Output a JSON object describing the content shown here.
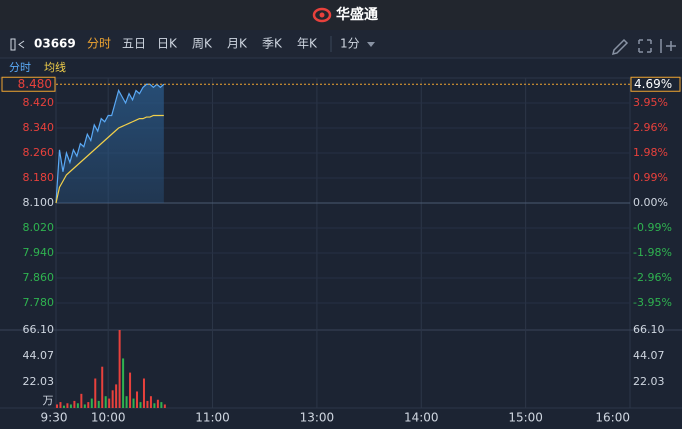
{
  "header": {
    "title": "华盛通"
  },
  "toolbar": {
    "code": "03669",
    "tabs": [
      "分时",
      "五日",
      "日K",
      "周K",
      "月K",
      "季K",
      "年K"
    ],
    "interval": "1分"
  },
  "chart_data": [
    {
      "type": "line",
      "x": [
        0,
        2,
        4,
        6,
        8,
        10,
        12,
        14,
        16,
        18,
        20,
        22,
        24,
        26,
        28,
        30,
        32,
        34,
        36,
        38,
        40,
        42,
        44,
        46,
        48,
        50,
        52,
        54,
        56,
        58,
        60,
        62
      ],
      "xlim": [
        0,
        330
      ],
      "xticks": [
        {
          "value": 0,
          "label": "9:30"
        },
        {
          "value": 30,
          "label": "10:00"
        },
        {
          "value": 90,
          "label": "11:00"
        },
        {
          "value": 150,
          "label": "13:00"
        },
        {
          "value": 210,
          "label": "14:00"
        },
        {
          "value": 270,
          "label": "15:00"
        },
        {
          "value": 330,
          "label": "16:00"
        }
      ],
      "ylim": [
        7.7,
        8.5
      ],
      "yticks": [
        {
          "value": 8.42,
          "label": "8.420"
        },
        {
          "value": 8.34,
          "label": "8.340"
        },
        {
          "value": 8.26,
          "label": "8.260"
        },
        {
          "value": 8.18,
          "label": "8.180"
        },
        {
          "value": 8.1,
          "label": "8.100"
        },
        {
          "value": 8.02,
          "label": "8.020"
        },
        {
          "value": 7.94,
          "label": "7.940"
        },
        {
          "value": 7.86,
          "label": "7.860"
        },
        {
          "value": 7.78,
          "label": "7.780"
        }
      ],
      "y2lim": [
        -4.94,
        4.94
      ],
      "y2ticks": [
        {
          "value": 3.95,
          "label": "3.95%"
        },
        {
          "value": 2.96,
          "label": "2.96%"
        },
        {
          "value": 1.98,
          "label": "1.98%"
        },
        {
          "value": 0.99,
          "label": "0.99%"
        },
        {
          "value": 0,
          "label": "0.00%"
        },
        {
          "value": -0.99,
          "label": "-0.99%"
        },
        {
          "value": -1.98,
          "label": "-1.98%"
        },
        {
          "value": -2.96,
          "label": "-2.96%"
        },
        {
          "value": -3.95,
          "label": "-3.95%"
        }
      ],
      "last_price": {
        "value": 8.48,
        "label": "8.480"
      },
      "last_change": {
        "value": 4.69,
        "label": "4.69%"
      },
      "grid": true,
      "series": [
        {
          "name": "分时",
          "color": "#5aa9f5",
          "values": [
            8.1,
            8.27,
            8.2,
            8.26,
            8.23,
            8.27,
            8.25,
            8.29,
            8.28,
            8.32,
            8.3,
            8.35,
            8.33,
            8.37,
            8.36,
            8.38,
            8.38,
            8.42,
            8.46,
            8.44,
            8.42,
            8.45,
            8.43,
            8.46,
            8.45,
            8.47,
            8.48,
            8.48,
            8.47,
            8.48,
            8.47,
            8.48
          ]
        },
        {
          "name": "均线",
          "color": "#f2d04a",
          "values": [
            8.1,
            8.15,
            8.17,
            8.19,
            8.2,
            8.21,
            8.22,
            8.23,
            8.24,
            8.25,
            8.26,
            8.27,
            8.28,
            8.29,
            8.3,
            8.31,
            8.32,
            8.33,
            8.34,
            8.345,
            8.35,
            8.355,
            8.36,
            8.365,
            8.37,
            8.37,
            8.375,
            8.375,
            8.38,
            8.38,
            8.38,
            8.38
          ]
        }
      ]
    },
    {
      "type": "bar",
      "x": [
        0,
        2,
        4,
        6,
        8,
        10,
        12,
        14,
        16,
        18,
        20,
        22,
        24,
        26,
        28,
        30,
        32,
        34,
        36,
        38,
        40,
        42,
        44,
        46,
        48,
        50,
        52,
        54,
        56,
        58,
        60,
        62
      ],
      "xlim": [
        0,
        330
      ],
      "ylim": [
        0,
        66.1
      ],
      "yticks": [
        {
          "value": 66.1,
          "label": "66.10"
        },
        44.07,
        22.03
      ],
      "unit_label": "万",
      "up_color": "#e8413c",
      "down_color": "#2fb350",
      "values": [
        3,
        5,
        2,
        4,
        3,
        6,
        4,
        12,
        3,
        5,
        8,
        25,
        6,
        35,
        10,
        8,
        15,
        20,
        66.1,
        42,
        10,
        30,
        8,
        14,
        5,
        25,
        6,
        10,
        4,
        7,
        5,
        3
      ]
    }
  ]
}
